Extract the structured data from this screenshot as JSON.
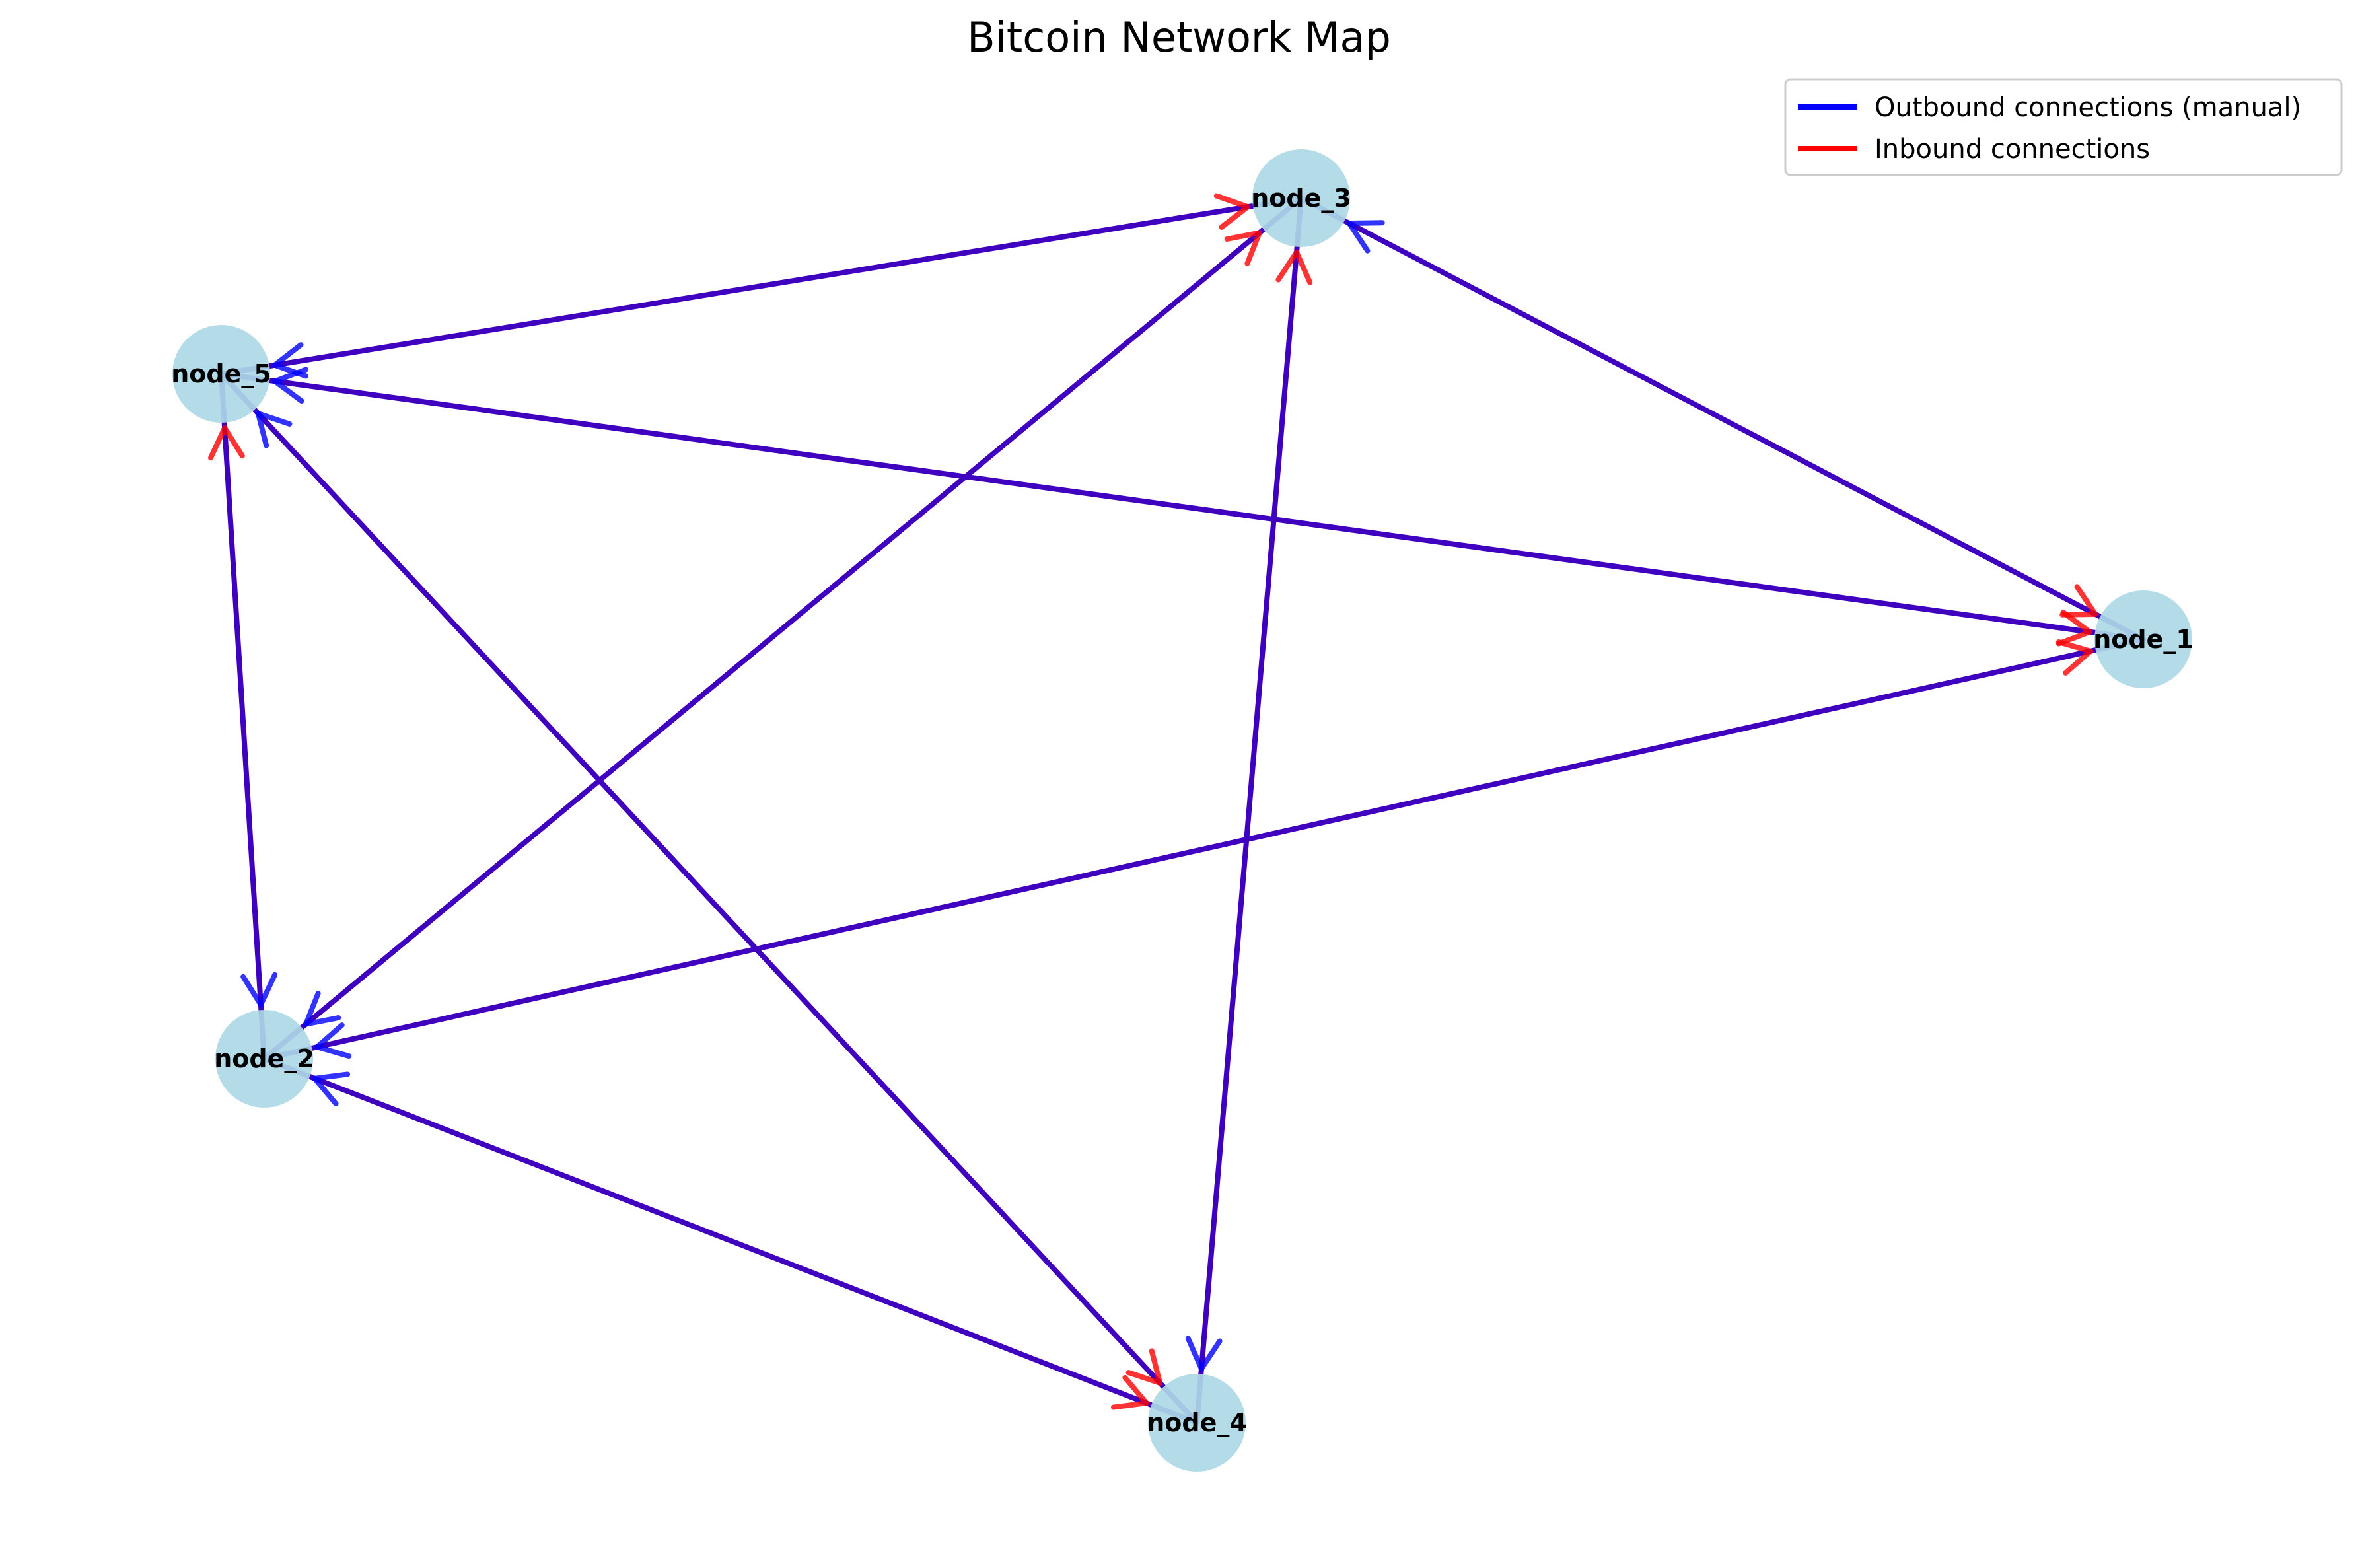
{
  "title": "Bitcoin Network Map",
  "colors": {
    "node_fill": "#add8e6",
    "outbound": "#0000ff",
    "inbound": "#ff0000",
    "edge_overlap": "#4000bf",
    "legend_border": "#cccccc"
  },
  "legend": {
    "placement": "top-right",
    "entries": [
      {
        "label": "Outbound connections (manual)",
        "color": "#0000ff"
      },
      {
        "label": "Inbound connections",
        "color": "#ff0000"
      }
    ]
  },
  "nodes": [
    {
      "id": "node_1",
      "label": "node_1"
    },
    {
      "id": "node_2",
      "label": "node_2"
    },
    {
      "id": "node_3",
      "label": "node_3"
    },
    {
      "id": "node_4",
      "label": "node_4"
    },
    {
      "id": "node_5",
      "label": "node_5"
    }
  ],
  "outbound_edges": [
    {
      "source": "node_1",
      "target": "node_3"
    },
    {
      "source": "node_1",
      "target": "node_5"
    },
    {
      "source": "node_1",
      "target": "node_2"
    },
    {
      "source": "node_3",
      "target": "node_5"
    },
    {
      "source": "node_3",
      "target": "node_2"
    },
    {
      "source": "node_3",
      "target": "node_4"
    },
    {
      "source": "node_5",
      "target": "node_2"
    },
    {
      "source": "node_4",
      "target": "node_5"
    },
    {
      "source": "node_4",
      "target": "node_2"
    }
  ],
  "inbound_edges": [
    {
      "source": "node_3",
      "target": "node_1"
    },
    {
      "source": "node_5",
      "target": "node_1"
    },
    {
      "source": "node_2",
      "target": "node_1"
    },
    {
      "source": "node_5",
      "target": "node_3"
    },
    {
      "source": "node_2",
      "target": "node_3"
    },
    {
      "source": "node_4",
      "target": "node_3"
    },
    {
      "source": "node_2",
      "target": "node_5"
    },
    {
      "source": "node_5",
      "target": "node_4"
    },
    {
      "source": "node_2",
      "target": "node_4"
    }
  ]
}
